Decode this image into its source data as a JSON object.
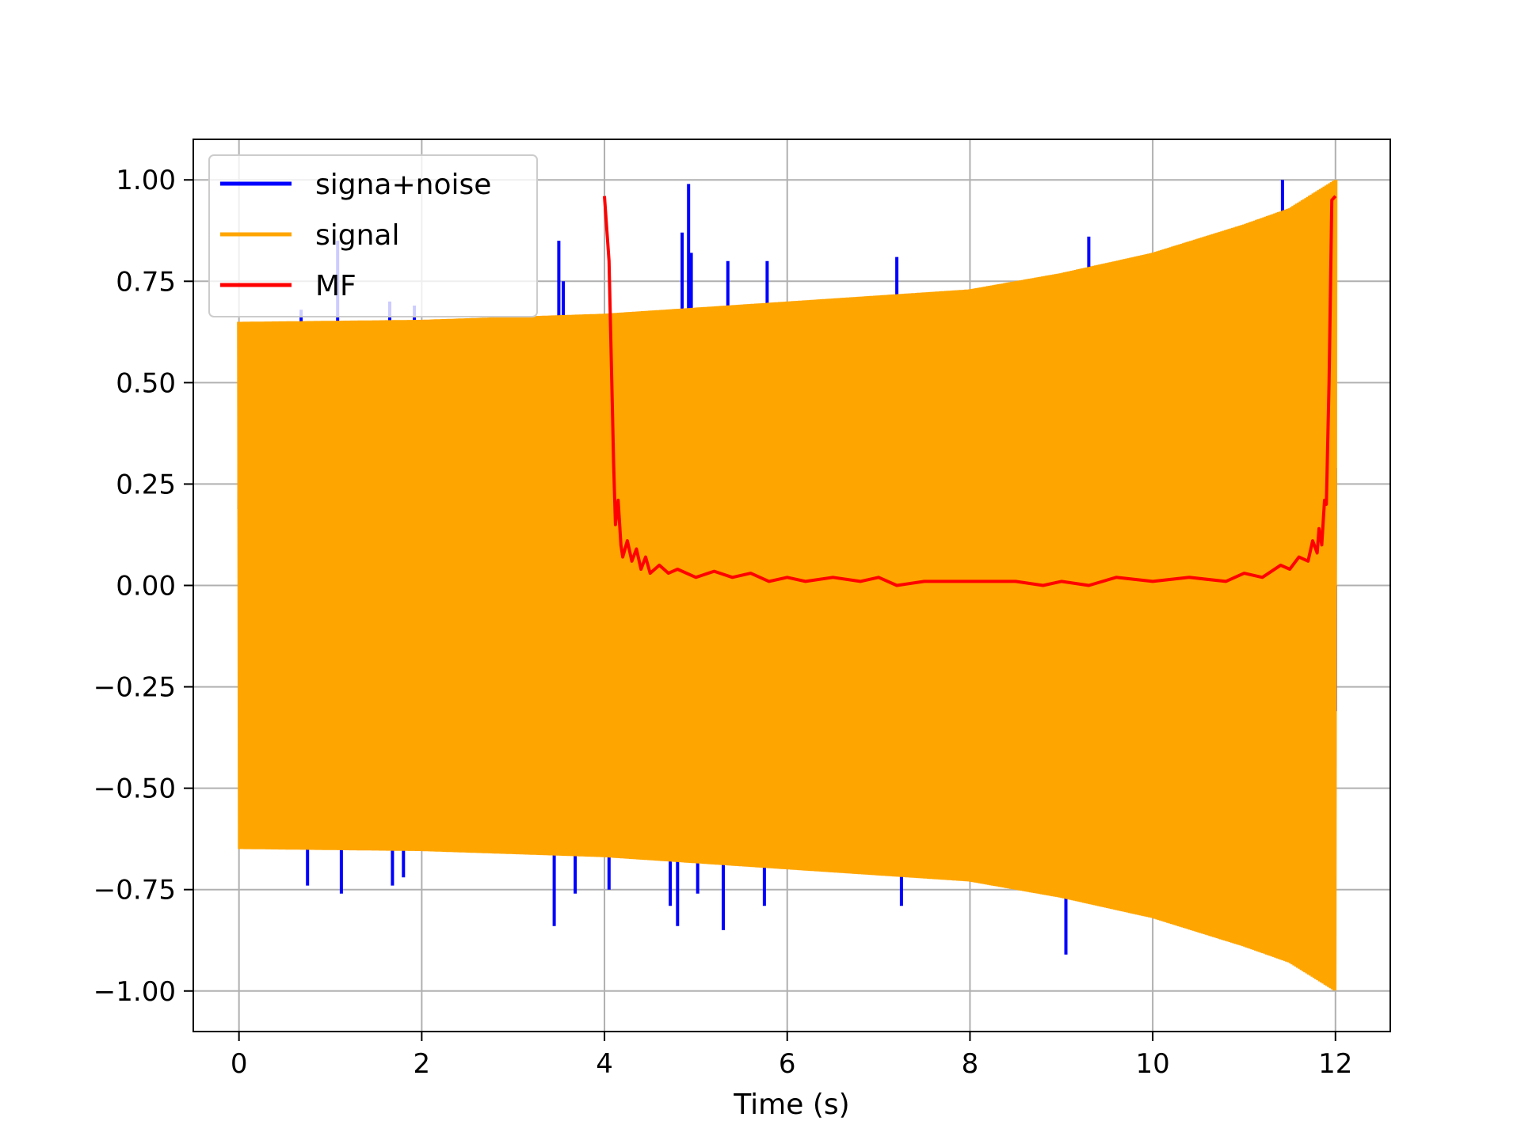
{
  "chart_data": {
    "type": "line",
    "title": "",
    "xlabel": "Time (s)",
    "ylabel": "",
    "xlim": [
      -0.5,
      12.6
    ],
    "ylim": [
      -1.1,
      1.1
    ],
    "xticks": [
      0,
      2,
      4,
      6,
      8,
      10,
      12
    ],
    "xtick_labels": [
      "0",
      "2",
      "4",
      "6",
      "8",
      "10",
      "12"
    ],
    "yticks": [
      1.0,
      0.75,
      0.5,
      0.25,
      0.0,
      -0.25,
      -0.5,
      -0.75,
      -1.0
    ],
    "ytick_labels": [
      "1.00",
      "0.75",
      "0.50",
      "0.25",
      "0.00",
      "−0.25",
      "−0.50",
      "−0.75",
      "−1.00"
    ],
    "grid": true,
    "legend_position": "top-left",
    "series": [
      {
        "name": "signa+noise",
        "color": "#0000ff",
        "description": "dense oscillating signal plus noise spikes",
        "envelope": {
          "x": [
            0,
            1,
            2,
            3,
            4,
            5,
            6,
            7,
            8,
            9,
            10,
            11,
            12
          ],
          "upper": [
            0.6,
            0.85,
            0.69,
            0.69,
            0.7,
            0.99,
            0.8,
            0.81,
            0.78,
            0.86,
            0.87,
            1.0,
            1.0
          ],
          "lower": [
            -0.74,
            -0.76,
            -0.74,
            -0.84,
            -0.75,
            -0.85,
            -0.79,
            -0.79,
            -0.82,
            -0.91,
            -0.89,
            -0.95,
            -1.0
          ]
        },
        "spikes": [
          {
            "x": 0.05,
            "y": 0.6
          },
          {
            "x": 0.68,
            "y": 0.68
          },
          {
            "x": 0.75,
            "y": -0.74
          },
          {
            "x": 1.08,
            "y": 0.85
          },
          {
            "x": 1.12,
            "y": -0.76
          },
          {
            "x": 1.65,
            "y": 0.7
          },
          {
            "x": 1.68,
            "y": -0.74
          },
          {
            "x": 1.8,
            "y": -0.72
          },
          {
            "x": 1.92,
            "y": 0.69
          },
          {
            "x": 3.45,
            "y": -0.84
          },
          {
            "x": 3.5,
            "y": 0.85
          },
          {
            "x": 3.55,
            "y": 0.75
          },
          {
            "x": 3.68,
            "y": -0.76
          },
          {
            "x": 4.05,
            "y": -0.75
          },
          {
            "x": 4.72,
            "y": -0.79
          },
          {
            "x": 4.8,
            "y": -0.84
          },
          {
            "x": 4.85,
            "y": 0.87
          },
          {
            "x": 4.92,
            "y": 0.99
          },
          {
            "x": 4.95,
            "y": 0.82
          },
          {
            "x": 5.02,
            "y": -0.76
          },
          {
            "x": 5.3,
            "y": -0.85
          },
          {
            "x": 5.35,
            "y": 0.8
          },
          {
            "x": 5.75,
            "y": -0.79
          },
          {
            "x": 5.78,
            "y": 0.8
          },
          {
            "x": 7.2,
            "y": 0.81
          },
          {
            "x": 7.25,
            "y": -0.79
          },
          {
            "x": 9.05,
            "y": -0.91
          },
          {
            "x": 9.3,
            "y": 0.86
          },
          {
            "x": 11.42,
            "y": 1.0
          },
          {
            "x": 12.0,
            "y": -0.31
          }
        ]
      },
      {
        "name": "signal",
        "color": "#ffa500",
        "description": "dense oscillating chirp, amplitude grows from 0.65 to 1.0",
        "amplitude_envelope": {
          "x": [
            0,
            2,
            4,
            6,
            8,
            9,
            10,
            11,
            11.5,
            12
          ],
          "amplitude": [
            0.65,
            0.655,
            0.67,
            0.7,
            0.73,
            0.77,
            0.82,
            0.89,
            0.93,
            1.0
          ]
        }
      },
      {
        "name": "MF",
        "color": "#ff0000",
        "description": "matched filter output, defined from 4 to 12",
        "x": [
          4.0,
          4.05,
          4.08,
          4.1,
          4.12,
          4.15,
          4.18,
          4.2,
          4.25,
          4.3,
          4.35,
          4.4,
          4.45,
          4.5,
          4.6,
          4.7,
          4.8,
          5.0,
          5.2,
          5.4,
          5.6,
          5.8,
          6.0,
          6.2,
          6.5,
          6.8,
          7.0,
          7.2,
          7.5,
          8.0,
          8.5,
          8.8,
          9.0,
          9.3,
          9.6,
          10.0,
          10.4,
          10.8,
          11.0,
          11.2,
          11.4,
          11.5,
          11.6,
          11.7,
          11.75,
          11.8,
          11.82,
          11.85,
          11.88,
          11.9,
          11.93,
          11.96,
          12.0
        ],
        "y": [
          0.96,
          0.8,
          0.5,
          0.3,
          0.15,
          0.21,
          0.1,
          0.07,
          0.11,
          0.06,
          0.09,
          0.04,
          0.07,
          0.03,
          0.05,
          0.03,
          0.04,
          0.02,
          0.035,
          0.02,
          0.03,
          0.01,
          0.02,
          0.01,
          0.02,
          0.01,
          0.02,
          0.0,
          0.01,
          0.01,
          0.01,
          0.0,
          0.01,
          0.0,
          0.02,
          0.01,
          0.02,
          0.01,
          0.03,
          0.02,
          0.05,
          0.04,
          0.07,
          0.06,
          0.11,
          0.08,
          0.14,
          0.1,
          0.21,
          0.2,
          0.5,
          0.95,
          0.96
        ]
      }
    ]
  }
}
